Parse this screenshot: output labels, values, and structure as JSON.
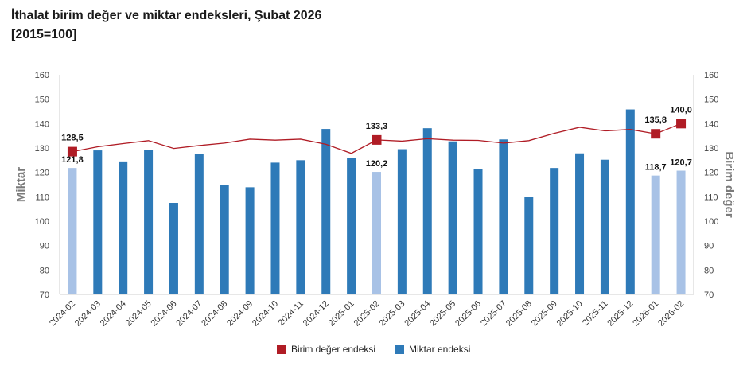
{
  "title_line1": "İthalat birim değer ve miktar endeksleri, Şubat 2026",
  "title_line2": "[2015=100]",
  "chart_data": {
    "type": "bar+line",
    "categories": [
      "2024-02",
      "2024-03",
      "2024-04",
      "2024-05",
      "2024-06",
      "2024-07",
      "2024-08",
      "2024-09",
      "2024-10",
      "2024-11",
      "2024-12",
      "2025-01",
      "2025-02",
      "2025-03",
      "2025-04",
      "2025-05",
      "2025-06",
      "2025-07",
      "2025-08",
      "2025-09",
      "2025-10",
      "2025-11",
      "2025-12",
      "2026-01",
      "2026-02"
    ],
    "series": [
      {
        "name": "Miktar endeksi",
        "type": "bar",
        "axis": "left",
        "color": "#2e7ab8",
        "highlight_color": "#a8c2e6",
        "values": [
          121.8,
          129.0,
          124.5,
          129.3,
          107.5,
          127.6,
          114.9,
          113.9,
          124.0,
          125.0,
          137.8,
          126.0,
          120.2,
          129.5,
          138.1,
          132.7,
          121.2,
          133.5,
          110.0,
          121.8,
          127.8,
          125.2,
          145.8,
          118.7,
          120.7
        ],
        "highlighted": [
          true,
          false,
          false,
          false,
          false,
          false,
          false,
          false,
          false,
          false,
          false,
          false,
          true,
          false,
          false,
          false,
          false,
          false,
          false,
          false,
          false,
          false,
          false,
          true,
          true
        ],
        "labels": {
          "0": "121,8",
          "12": "120,2",
          "23": "118,7",
          "24": "120,7"
        }
      },
      {
        "name": "Birim değer endeksi",
        "type": "line",
        "axis": "right",
        "color": "#b01c25",
        "values": [
          128.5,
          130.5,
          131.8,
          133.0,
          129.8,
          131.0,
          132.0,
          133.6,
          133.2,
          133.6,
          131.5,
          127.8,
          133.3,
          132.8,
          133.8,
          133.2,
          133.1,
          132.0,
          133.0,
          136.0,
          138.5,
          137.0,
          137.6,
          135.8,
          140.0
        ],
        "markers": [
          0,
          12,
          23,
          24
        ],
        "labels": {
          "0": "128,5",
          "12": "133,3",
          "23": "135,8",
          "24": "140,0"
        }
      }
    ],
    "y_left": {
      "label": "Miktar",
      "min": 70,
      "max": 160,
      "ticks": [
        70,
        80,
        90,
        100,
        110,
        120,
        130,
        140,
        150,
        160
      ]
    },
    "y_right": {
      "label": "Birim değer",
      "min": 70,
      "max": 160,
      "ticks": [
        70,
        80,
        90,
        100,
        110,
        120,
        130,
        140,
        150,
        160
      ]
    },
    "legend": [
      "Birim değer endeksi",
      "Miktar endeksi"
    ],
    "legend_position": "bottom",
    "grid": false
  }
}
